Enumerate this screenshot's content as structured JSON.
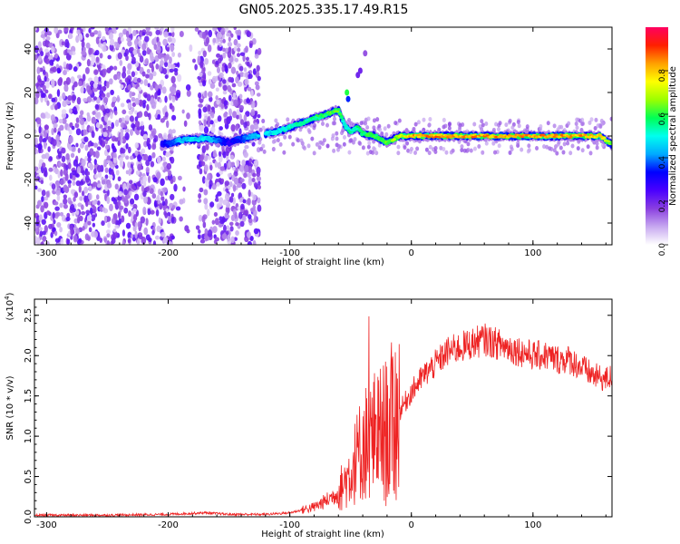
{
  "title": "GN05.2025.335.17.49.R15",
  "chart_data": [
    {
      "type": "heatmap",
      "xlabel": "Height of straight line (km)",
      "ylabel": "Frequency (Hz)",
      "xlim": [
        -310,
        165
      ],
      "ylim": [
        -50,
        50
      ],
      "xticks": [
        -300,
        -200,
        -100,
        0,
        100
      ],
      "yticks": [
        -40,
        -20,
        0,
        20,
        40
      ],
      "colorbar": {
        "label": "Normalized spectral amplitude",
        "range": [
          0,
          1
        ],
        "ticks": [
          "0.0",
          "0.2",
          "0.4",
          "0.6",
          "0.8"
        ],
        "tick_values": [
          0.0,
          0.2,
          0.4,
          0.6,
          0.8
        ],
        "colors": [
          "#ffffff",
          "#c7a8f0",
          "#8a3fe0",
          "#4a00ff",
          "#0000ff",
          "#00aaff",
          "#00ffee",
          "#00ff55",
          "#9cff00",
          "#ffff00",
          "#ffa000",
          "#ff2000",
          "#ff0060"
        ]
      },
      "ridge": {
        "x": [
          -205,
          -190,
          -170,
          -150,
          -130,
          -110,
          -90,
          -70,
          -60,
          -55,
          -50,
          -45,
          -40,
          -30,
          -20,
          -10,
          0,
          20,
          40,
          60,
          80,
          100,
          120,
          140,
          155,
          165
        ],
        "y": [
          -4,
          -2,
          -1,
          -3,
          0,
          2,
          6,
          10,
          12,
          5,
          2,
          4,
          1,
          0,
          -3,
          0,
          0,
          0,
          0,
          0,
          0,
          0,
          0,
          0,
          0,
          -4
        ],
        "peak_amplitude": [
          0.3,
          0.45,
          0.5,
          0.3,
          0.45,
          0.5,
          0.55,
          0.6,
          0.65,
          0.5,
          0.55,
          0.55,
          0.6,
          0.6,
          0.65,
          0.7,
          0.85,
          0.9,
          0.9,
          0.9,
          0.9,
          0.9,
          0.9,
          0.85,
          0.8,
          0.6
        ]
      },
      "noise_region": {
        "x": [
          -310,
          -125
        ],
        "amplitude": 0.2
      }
    },
    {
      "type": "line",
      "xlabel": "Height of straight line (km)",
      "ylabel": "SNR (10 * v/v)",
      "y_multiplier": "(x10",
      "y_multiplier_exp": "4",
      "y_multiplier_close": ")",
      "xlim": [
        -310,
        165
      ],
      "ylim": [
        0,
        2.7
      ],
      "xticks": [
        -300,
        -200,
        -100,
        0,
        100
      ],
      "yticks": [
        "0.0",
        "0.5",
        "1.0",
        "1.5",
        "2.0",
        "2.5"
      ],
      "ytick_values": [
        0,
        0.5,
        1.0,
        1.5,
        2.0,
        2.5
      ],
      "color": "#ee2222",
      "series": [
        {
          "x": [
            -310,
            -250,
            -200,
            -170,
            -150,
            -120,
            -100,
            -80,
            -70,
            -60,
            -50,
            -40,
            -30,
            -20,
            -10,
            0,
            10,
            20,
            30,
            40,
            50,
            60,
            70,
            80,
            90,
            100,
            110,
            120,
            130,
            140,
            150,
            160,
            165
          ],
          "y": [
            0.02,
            0.02,
            0.03,
            0.05,
            0.03,
            0.03,
            0.05,
            0.12,
            0.2,
            0.3,
            0.55,
            0.9,
            1.0,
            1.05,
            1.3,
            1.55,
            1.75,
            1.9,
            2.05,
            2.1,
            2.15,
            2.2,
            2.15,
            2.1,
            2.05,
            2.0,
            2.0,
            1.95,
            1.95,
            1.85,
            1.75,
            1.7,
            1.75
          ]
        }
      ]
    }
  ]
}
